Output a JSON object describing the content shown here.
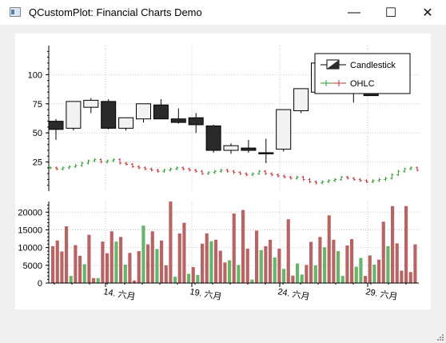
{
  "window": {
    "title": "QCustomPlot: Financial Charts Demo",
    "buttons": {
      "minimize": "—",
      "maximize": "☐",
      "close": "✕"
    }
  },
  "chart_data": [
    {
      "type": "candlestick",
      "legend": {
        "placement": "top-right",
        "entries": [
          "Candlestick",
          "OHLC"
        ]
      },
      "y_ticks": [
        "25",
        "50",
        "75",
        "100"
      ],
      "ylim": [
        0,
        125
      ],
      "grid": true,
      "candles": [
        {
          "o": 60,
          "h": 62,
          "l": 44,
          "c": 53
        },
        {
          "o": 54,
          "h": 77,
          "l": 52,
          "c": 77
        },
        {
          "o": 72,
          "h": 80,
          "l": 67,
          "c": 78
        },
        {
          "o": 77,
          "h": 79,
          "l": 53,
          "c": 54
        },
        {
          "o": 54,
          "h": 63,
          "l": 52,
          "c": 63
        },
        {
          "o": 62,
          "h": 75,
          "l": 59,
          "c": 75
        },
        {
          "o": 74,
          "h": 79,
          "l": 62,
          "c": 62
        },
        {
          "o": 62,
          "h": 71,
          "l": 58,
          "c": 59
        },
        {
          "o": 63,
          "h": 67,
          "l": 50,
          "c": 57
        },
        {
          "o": 56,
          "h": 57,
          "l": 33,
          "c": 35
        },
        {
          "o": 35,
          "h": 41,
          "l": 32,
          "c": 39
        },
        {
          "o": 37,
          "h": 44,
          "l": 33,
          "c": 35
        },
        {
          "o": 33,
          "h": 45,
          "l": 24,
          "c": 32
        },
        {
          "o": 36,
          "h": 70,
          "l": 34,
          "c": 70
        },
        {
          "o": 69,
          "h": 88,
          "l": 67,
          "c": 88
        },
        {
          "o": 85,
          "h": 113,
          "l": 85,
          "c": 110
        },
        {
          "o": 99,
          "h": 103,
          "l": 92,
          "c": 100
        },
        {
          "o": 92,
          "h": 100,
          "l": 76,
          "c": 90
        },
        {
          "o": 91,
          "h": 99,
          "l": 82,
          "c": 82
        },
        {
          "o": 88,
          "h": 99,
          "l": 88,
          "c": 99
        }
      ],
      "ohlc_closes": [
        20,
        19,
        20,
        21,
        22,
        24,
        26,
        27,
        25,
        26,
        27,
        24,
        23,
        21,
        20,
        19,
        18,
        17,
        18,
        19,
        20,
        19,
        18,
        17,
        15,
        16,
        17,
        18,
        17,
        16,
        15,
        14,
        15,
        17,
        15,
        14,
        13,
        12,
        11,
        12,
        10,
        8,
        7,
        8,
        9,
        10,
        12,
        11,
        10,
        9,
        8,
        9,
        10,
        11,
        14,
        17,
        19,
        20,
        18
      ]
    },
    {
      "type": "bar",
      "y_ticks": [
        "0",
        "5000",
        "10000",
        "15000",
        "20000"
      ],
      "ylim": [
        0,
        23000
      ],
      "x_ticks": [
        "14. 六月",
        "19. 六月",
        "24. 六月",
        "29. 六月"
      ],
      "grid": true,
      "series": [
        {
          "color": "#b86464",
          "values": [
            10400,
            12000,
            8900,
            16000,
            10700,
            7700,
            13600,
            1400,
            11700,
            8400,
            14600,
            13000,
            8500,
            700,
            9000,
            10900,
            14600,
            12000,
            5000,
            23000,
            14000,
            17000,
            4500,
            11100,
            14000,
            12200,
            9100,
            5800,
            19600,
            20600,
            9700,
            14800,
            10400,
            12200,
            9700,
            18000,
            2100,
            5100,
            11600,
            13000,
            19100,
            12200,
            10600,
            12400,
            2000,
            7800,
            6600,
            17300,
            21700,
            11200,
            3500,
            21700,
            3100,
            10900
          ]
        },
        {
          "color": "#6ab46a",
          "values": [
            2000,
            5300,
            1400,
            11700,
            5200,
            16200,
            9600,
            1800,
            2600,
            2300,
            11800,
            6400,
            5100,
            1000,
            9300,
            7200,
            4000,
            5500,
            2400,
            5000,
            10100,
            9000,
            2000,
            4600,
            7100,
            5200,
            10400
          ]
        }
      ]
    }
  ]
}
